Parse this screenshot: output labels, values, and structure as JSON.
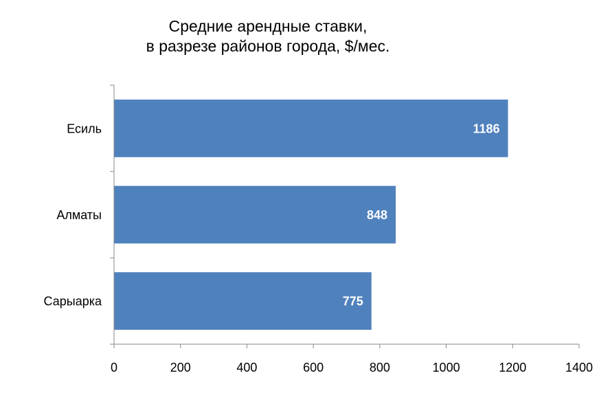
{
  "chart_data": {
    "type": "bar",
    "orientation": "horizontal",
    "title_lines": [
      "Средние арендные ставки,",
      "в разрезе районов города, $/мес."
    ],
    "categories": [
      "Есиль",
      "Алматы",
      "Сарыарка"
    ],
    "values": [
      1186,
      848,
      775
    ],
    "data_labels": [
      "1186",
      "848",
      "775"
    ],
    "xlim": [
      0,
      1400
    ],
    "x_ticks": [
      0,
      200,
      400,
      600,
      800,
      1000,
      1200,
      1400
    ],
    "x_tick_labels": [
      "0",
      "200",
      "400",
      "600",
      "800",
      "1000",
      "1200",
      "1400"
    ],
    "bar_color": "#4F81BD",
    "grid": false,
    "legend": "none"
  }
}
